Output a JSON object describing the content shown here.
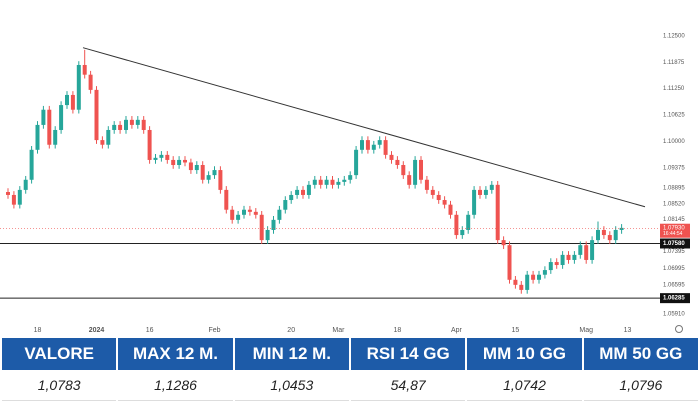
{
  "chart_data": {
    "type": "candlestick",
    "categories": [
      null,
      null,
      null,
      null,
      null,
      "18",
      null,
      null,
      null,
      null,
      null,
      null,
      null,
      null,
      null,
      "2024",
      null,
      null,
      null,
      null,
      null,
      null,
      null,
      null,
      "16",
      null,
      null,
      null,
      null,
      null,
      null,
      null,
      null,
      null,
      null,
      "Feb",
      null,
      null,
      null,
      null,
      null,
      null,
      null,
      null,
      null,
      null,
      null,
      null,
      "20",
      null,
      null,
      null,
      null,
      null,
      null,
      null,
      "Mar",
      null,
      null,
      null,
      null,
      null,
      null,
      null,
      null,
      null,
      "18",
      null,
      null,
      null,
      null,
      null,
      null,
      null,
      null,
      null,
      "Apr",
      null,
      null,
      null,
      null,
      null,
      null,
      null,
      null,
      null,
      "15",
      null,
      null,
      null,
      null,
      null,
      null,
      null,
      null,
      null,
      null,
      null,
      "Mag",
      null,
      null,
      null,
      null,
      null,
      null,
      "13"
    ],
    "open": [
      1.088,
      1.0873,
      1.085,
      1.0885,
      1.0909,
      1.098,
      1.1039,
      1.1075,
      1.0992,
      1.1027,
      1.1086,
      1.111,
      1.1075,
      1.1181,
      1.1158,
      1.1122,
      1.1003,
      1.0992,
      1.1027,
      1.1039,
      1.1027,
      1.1051,
      1.1039,
      1.1051,
      1.1027,
      1.0956,
      1.0961,
      1.0968,
      1.0956,
      1.0944,
      1.0956,
      1.095,
      1.0932,
      1.0944,
      1.0909,
      1.092,
      1.0932,
      1.0885,
      1.0838,
      1.0814,
      1.0826,
      1.0838,
      1.0833,
      1.0826,
      1.0766,
      1.079,
      1.0814,
      1.0838,
      1.0861,
      1.0873,
      1.0885,
      1.0873,
      1.0897,
      1.0909,
      1.0897,
      1.0909,
      1.0897,
      1.0904,
      1.0909,
      1.092,
      1.098,
      1.1003,
      1.098,
      1.0992,
      1.1003,
      1.0968,
      1.0956,
      1.0944,
      1.092,
      1.0897,
      1.0956,
      1.0909,
      1.0885,
      1.0873,
      1.0861,
      1.085,
      1.0826,
      1.0778,
      1.079,
      1.0826,
      1.0885,
      1.0873,
      1.0885,
      1.0897,
      1.0766,
      1.0754,
      1.0672,
      1.066,
      1.0648,
      1.0684,
      1.0672,
      1.0684,
      1.0695,
      1.0714,
      1.0707,
      1.0731,
      1.0719,
      1.0731,
      1.0754,
      1.0719,
      1.0766,
      1.079,
      1.0778,
      1.0766,
      1.079,
      null
    ],
    "high": [
      1.0889,
      1.0882,
      1.0894,
      1.0918,
      1.0989,
      1.1048,
      1.1084,
      1.1084,
      1.1036,
      1.1095,
      1.1119,
      1.1119,
      1.119,
      1.1217,
      1.1167,
      1.1131,
      1.1012,
      1.1036,
      1.1048,
      1.1048,
      1.106,
      1.106,
      1.106,
      1.106,
      1.1036,
      1.097,
      1.0977,
      1.0977,
      1.0965,
      1.0965,
      1.0965,
      1.0959,
      1.0953,
      1.0953,
      1.0929,
      1.0941,
      1.0941,
      1.0894,
      1.0847,
      1.0835,
      1.0847,
      1.0847,
      1.0842,
      1.0835,
      1.0799,
      1.0823,
      1.0847,
      1.087,
      1.0882,
      1.0894,
      1.0894,
      1.0906,
      1.0918,
      1.0918,
      1.0918,
      1.0918,
      1.0913,
      1.0918,
      1.0929,
      1.0989,
      1.1012,
      1.1012,
      1.1001,
      1.1012,
      1.1012,
      1.0977,
      1.0965,
      1.0953,
      1.0929,
      1.0965,
      1.0965,
      1.0918,
      1.0894,
      1.0882,
      1.087,
      1.0859,
      1.0835,
      1.0799,
      1.0835,
      1.0894,
      1.0894,
      1.0894,
      1.0906,
      1.0906,
      1.0775,
      1.0763,
      1.0681,
      1.0669,
      1.0693,
      1.0693,
      1.0693,
      1.0704,
      1.0723,
      1.0723,
      1.074,
      1.074,
      1.074,
      1.0763,
      1.0763,
      1.0775,
      1.081,
      1.0799,
      1.0787,
      1.0799,
      1.0804,
      null
    ],
    "low": [
      1.0864,
      1.0841,
      1.0841,
      1.0876,
      1.09,
      1.0971,
      1.103,
      1.0983,
      1.0983,
      1.1018,
      1.1077,
      1.1066,
      1.1066,
      1.1149,
      1.1113,
      1.0994,
      1.0983,
      1.0983,
      1.1018,
      1.1018,
      1.1018,
      1.103,
      1.103,
      1.1018,
      1.0947,
      1.0947,
      1.0952,
      1.0947,
      1.0935,
      1.0935,
      1.0941,
      1.0923,
      1.0923,
      1.09,
      1.09,
      1.0911,
      1.0876,
      1.0829,
      1.0805,
      1.0805,
      1.0817,
      1.0824,
      1.0817,
      1.0757,
      1.0757,
      1.0781,
      1.0805,
      1.0829,
      1.0852,
      1.0864,
      1.0864,
      1.0864,
      1.0888,
      1.0888,
      1.0888,
      1.0888,
      1.0888,
      1.0895,
      1.09,
      1.0911,
      1.0971,
      1.0971,
      1.0971,
      1.0983,
      1.0959,
      1.0947,
      1.0935,
      1.0911,
      1.0888,
      1.0888,
      1.09,
      1.0876,
      1.0864,
      1.0852,
      1.0841,
      1.0817,
      1.0769,
      1.0769,
      1.0781,
      1.0817,
      1.0864,
      1.0864,
      1.0876,
      1.0757,
      1.0745,
      1.0663,
      1.0651,
      1.0639,
      1.0639,
      1.0663,
      1.0663,
      1.0675,
      1.0686,
      1.0698,
      1.0698,
      1.071,
      1.071,
      1.0722,
      1.071,
      1.071,
      1.0757,
      1.0769,
      1.0757,
      1.0757,
      1.0781,
      null
    ],
    "close": [
      1.0873,
      1.085,
      1.0885,
      1.0909,
      1.098,
      1.1039,
      1.1075,
      1.0992,
      1.1027,
      1.1086,
      1.111,
      1.1075,
      1.1181,
      1.1158,
      1.1122,
      1.1003,
      1.0992,
      1.1027,
      1.1039,
      1.1027,
      1.1051,
      1.1039,
      1.1051,
      1.1027,
      1.0956,
      1.0961,
      1.0968,
      1.0956,
      1.0944,
      1.0956,
      1.095,
      1.0932,
      1.0944,
      1.0909,
      1.092,
      1.0932,
      1.0885,
      1.0838,
      1.0814,
      1.0826,
      1.0838,
      1.0833,
      1.0826,
      1.0766,
      1.079,
      1.0814,
      1.0838,
      1.0861,
      1.0873,
      1.0885,
      1.0873,
      1.0897,
      1.0909,
      1.0897,
      1.0909,
      1.0897,
      1.0904,
      1.0909,
      1.092,
      1.098,
      1.1003,
      1.098,
      1.0992,
      1.1003,
      1.0968,
      1.0956,
      1.0944,
      1.092,
      1.0897,
      1.0956,
      1.0909,
      1.0885,
      1.0873,
      1.0861,
      1.085,
      1.0826,
      1.0778,
      1.079,
      1.0826,
      1.0885,
      1.0873,
      1.0885,
      1.0897,
      1.0766,
      1.0754,
      1.0672,
      1.066,
      1.0648,
      1.0684,
      1.0672,
      1.0684,
      1.0695,
      1.0714,
      1.0707,
      1.0731,
      1.0719,
      1.0731,
      1.0754,
      1.0719,
      1.0766,
      1.079,
      1.0778,
      1.0766,
      1.079,
      1.0795,
      null
    ],
    "up_color": "#26a69a",
    "down_color": "#ef5350",
    "ylim": [
      1.0553,
      1.1335
    ],
    "yticks": [
      {
        "value": 1.125,
        "label": "1.12500"
      },
      {
        "value": 1.11875,
        "label": "1.11875"
      },
      {
        "value": 1.1125,
        "label": "1.11250"
      },
      {
        "value": 1.10625,
        "label": "1.10625"
      },
      {
        "value": 1.1,
        "label": "1.10000"
      },
      {
        "value": 1.09375,
        "label": "1.09375"
      },
      {
        "value": 1.08895,
        "label": "1.08895"
      },
      {
        "value": 1.0852,
        "label": "1.08520"
      },
      {
        "value": 1.08145,
        "label": "1.08145"
      },
      {
        "value": 1.07395,
        "label": "1.07395"
      },
      {
        "value": 1.06995,
        "label": "1.06995"
      },
      {
        "value": 1.06595,
        "label": "1.06595"
      },
      {
        "value": 1.0591,
        "label": "1.05910"
      }
    ],
    "grid": false,
    "trend_line": {
      "start": 1.1222,
      "end": 1.0845
    },
    "levels": [
      {
        "value": 1.0758,
        "label": "1.07580"
      },
      {
        "value": 1.06285,
        "label": "1.06285"
      }
    ],
    "last_price": {
      "value": 1.0793,
      "label": "1.07930",
      "time": "16:44:54"
    }
  },
  "table": {
    "headers": [
      "VALORE",
      "MAX 12 M.",
      "MIN 12 M.",
      "RSI 14 GG",
      "MM 10 GG",
      "MM 50 GG"
    ],
    "rows": [
      [
        "1,0783",
        "1,1286",
        "1,0453",
        "54,87",
        "1,0742",
        "1,0796"
      ]
    ]
  }
}
